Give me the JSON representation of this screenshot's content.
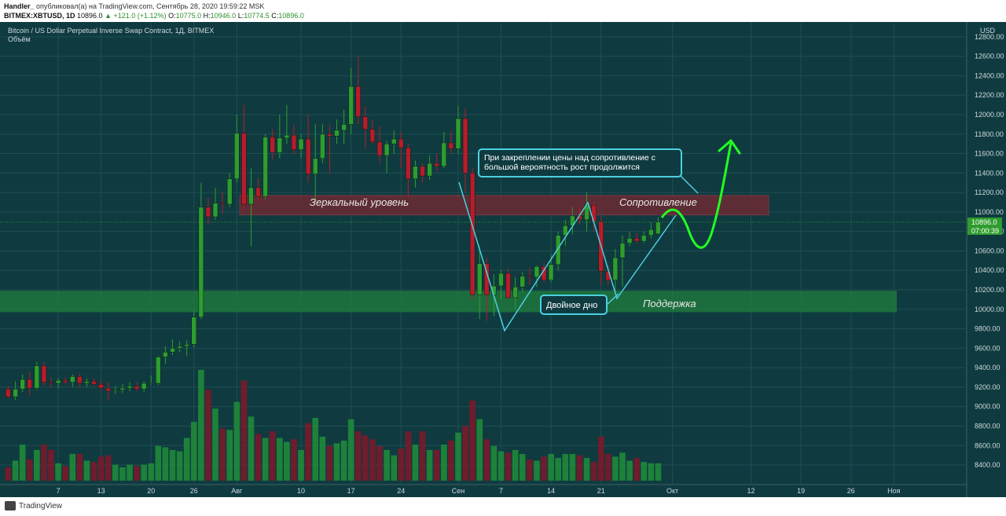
{
  "header": {
    "author": "Handler_",
    "published": "опубликовал(а) на TradingView.com, Сентябрь 28, 2020 19:59:22 MSK",
    "symbol": "BITMEX:XBTUSD, 1D",
    "price": "10896.0",
    "change": "▲ +121.0 (+1.12%)",
    "ohlc_labels": [
      "O:",
      "H:",
      "L:",
      "C:"
    ],
    "ohlc_values": [
      "10775.0",
      "10946.0",
      "10774.5",
      "10896.0"
    ]
  },
  "chart_title": "Bitcoin / US Dollar Perpetual Inverse Swap Contract, 1Д, BITMEX",
  "volume_label": "Объём",
  "annotations": {
    "mirror_level": "Зеркальный уровень",
    "resistance": "Сопротивление",
    "support": "Поддержка",
    "double_bottom": "Двойное дно",
    "callout_line1": "При закреплении цены над сопротивление с",
    "callout_line2": "большой вероятность рост продолжится"
  },
  "price_tag": "10896.0",
  "time_tag": "07:00:39",
  "footer_brand": "TradingView",
  "colors": {
    "background": "#0f3b40",
    "up": "#2e9d2e",
    "down": "#b71c2a",
    "resistance_zone": "#6b2a33",
    "support_zone": "#1f7a3c",
    "pattern_line": "#4dd0e1",
    "projection": "#22ff22"
  },
  "chart_data": {
    "type": "candlestick",
    "currency": "USD",
    "y_ticks": [
      8400,
      8600,
      8800,
      9000,
      9200,
      9400,
      9600,
      9800,
      10000,
      10200,
      10400,
      10600,
      10800,
      11000,
      11200,
      11400,
      11600,
      11800,
      12000,
      12200,
      12400,
      12600,
      12800
    ],
    "x_ticks": [
      {
        "label": "7",
        "day": 7
      },
      {
        "label": "13",
        "day": 13
      },
      {
        "label": "20",
        "day": 20
      },
      {
        "label": "26",
        "day": 26
      },
      {
        "label": "Авг",
        "day": 32
      },
      {
        "label": "10",
        "day": 41
      },
      {
        "label": "17",
        "day": 48
      },
      {
        "label": "24",
        "day": 55
      },
      {
        "label": "Сен",
        "day": 63
      },
      {
        "label": "7",
        "day": 69
      },
      {
        "label": "14",
        "day": 76
      },
      {
        "label": "21",
        "day": 83
      },
      {
        "label": "Окт",
        "day": 93
      },
      {
        "label": "12",
        "day": 104
      },
      {
        "label": "19",
        "day": 111
      },
      {
        "label": "26",
        "day": 118
      },
      {
        "label": "Ноя",
        "day": 124
      }
    ],
    "candles": [
      {
        "d": 0,
        "o": 9180,
        "h": 9210,
        "l": 9090,
        "c": 9100,
        "v": 1.0
      },
      {
        "d": 1,
        "o": 9100,
        "h": 9260,
        "l": 9070,
        "c": 9180,
        "v": 1.5
      },
      {
        "d": 2,
        "o": 9180,
        "h": 9330,
        "l": 9150,
        "c": 9280,
        "v": 2.7
      },
      {
        "d": 3,
        "o": 9280,
        "h": 9360,
        "l": 9110,
        "c": 9190,
        "v": 1.6
      },
      {
        "d": 4,
        "o": 9190,
        "h": 9460,
        "l": 9170,
        "c": 9420,
        "v": 2.3
      },
      {
        "d": 5,
        "o": 9420,
        "h": 9460,
        "l": 9220,
        "c": 9250,
        "v": 2.7
      },
      {
        "d": 6,
        "o": 9250,
        "h": 9300,
        "l": 9200,
        "c": 9240,
        "v": 2.3
      },
      {
        "d": 7,
        "o": 9240,
        "h": 9290,
        "l": 9190,
        "c": 9270,
        "v": 1.3
      },
      {
        "d": 8,
        "o": 9270,
        "h": 9300,
        "l": 9230,
        "c": 9250,
        "v": 1.1
      },
      {
        "d": 9,
        "o": 9250,
        "h": 9330,
        "l": 9200,
        "c": 9310,
        "v": 2.0
      },
      {
        "d": 10,
        "o": 9310,
        "h": 9340,
        "l": 9200,
        "c": 9240,
        "v": 2.0
      },
      {
        "d": 11,
        "o": 9240,
        "h": 9290,
        "l": 9200,
        "c": 9260,
        "v": 1.5
      },
      {
        "d": 12,
        "o": 9260,
        "h": 9290,
        "l": 9210,
        "c": 9230,
        "v": 1.4
      },
      {
        "d": 13,
        "o": 9230,
        "h": 9270,
        "l": 9170,
        "c": 9190,
        "v": 1.8
      },
      {
        "d": 14,
        "o": 9190,
        "h": 9250,
        "l": 9060,
        "c": 9160,
        "v": 1.9
      },
      {
        "d": 15,
        "o": 9160,
        "h": 9210,
        "l": 9130,
        "c": 9170,
        "v": 1.2
      },
      {
        "d": 16,
        "o": 9170,
        "h": 9230,
        "l": 9140,
        "c": 9190,
        "v": 1.0
      },
      {
        "d": 17,
        "o": 9190,
        "h": 9250,
        "l": 9160,
        "c": 9210,
        "v": 1.2
      },
      {
        "d": 18,
        "o": 9210,
        "h": 9250,
        "l": 9160,
        "c": 9180,
        "v": 1.1
      },
      {
        "d": 19,
        "o": 9180,
        "h": 9260,
        "l": 9150,
        "c": 9240,
        "v": 1.2
      },
      {
        "d": 20,
        "o": 9240,
        "h": 9320,
        "l": 9220,
        "c": 9240,
        "v": 1.3
      },
      {
        "d": 21,
        "o": 9240,
        "h": 9520,
        "l": 9220,
        "c": 9510,
        "v": 2.6
      },
      {
        "d": 22,
        "o": 9510,
        "h": 9620,
        "l": 9440,
        "c": 9560,
        "v": 2.5
      },
      {
        "d": 23,
        "o": 9560,
        "h": 9690,
        "l": 9530,
        "c": 9600,
        "v": 2.3
      },
      {
        "d": 24,
        "o": 9600,
        "h": 9670,
        "l": 9560,
        "c": 9620,
        "v": 2.2
      },
      {
        "d": 25,
        "o": 9620,
        "h": 9680,
        "l": 9520,
        "c": 9640,
        "v": 3.2
      },
      {
        "d": 26,
        "o": 9640,
        "h": 9990,
        "l": 9610,
        "c": 9920,
        "v": 4.4
      },
      {
        "d": 27,
        "o": 9920,
        "h": 11300,
        "l": 9900,
        "c": 11050,
        "v": 8.3
      },
      {
        "d": 28,
        "o": 11050,
        "h": 11150,
        "l": 10870,
        "c": 10950,
        "v": 6.8
      },
      {
        "d": 29,
        "o": 10950,
        "h": 11250,
        "l": 10920,
        "c": 11090,
        "v": 5.4
      },
      {
        "d": 30,
        "o": 11090,
        "h": 11200,
        "l": 10980,
        "c": 11080,
        "v": 3.9
      },
      {
        "d": 31,
        "o": 11080,
        "h": 11400,
        "l": 11050,
        "c": 11340,
        "v": 3.8
      },
      {
        "d": 32,
        "o": 11340,
        "h": 12000,
        "l": 11300,
        "c": 11810,
        "v": 5.9
      },
      {
        "d": 33,
        "o": 11810,
        "h": 12100,
        "l": 11020,
        "c": 11080,
        "v": 7.5
      },
      {
        "d": 34,
        "o": 11080,
        "h": 11450,
        "l": 10650,
        "c": 11250,
        "v": 4.8
      },
      {
        "d": 35,
        "o": 11250,
        "h": 11350,
        "l": 11100,
        "c": 11160,
        "v": 3.5
      },
      {
        "d": 36,
        "o": 11160,
        "h": 11800,
        "l": 11130,
        "c": 11770,
        "v": 3.2
      },
      {
        "d": 37,
        "o": 11770,
        "h": 11850,
        "l": 11540,
        "c": 11610,
        "v": 3.7
      },
      {
        "d": 38,
        "o": 11610,
        "h": 12000,
        "l": 11550,
        "c": 11760,
        "v": 3.2
      },
      {
        "d": 39,
        "o": 11760,
        "h": 12100,
        "l": 11700,
        "c": 11790,
        "v": 2.9
      },
      {
        "d": 40,
        "o": 11790,
        "h": 11890,
        "l": 11600,
        "c": 11640,
        "v": 3.1
      },
      {
        "d": 41,
        "o": 11640,
        "h": 11800,
        "l": 11550,
        "c": 11750,
        "v": 2.3
      },
      {
        "d": 42,
        "o": 11750,
        "h": 12000,
        "l": 11300,
        "c": 11390,
        "v": 4.3
      },
      {
        "d": 43,
        "o": 11390,
        "h": 11900,
        "l": 11100,
        "c": 11550,
        "v": 4.7
      },
      {
        "d": 44,
        "o": 11550,
        "h": 11900,
        "l": 11500,
        "c": 11800,
        "v": 3.3
      },
      {
        "d": 45,
        "o": 11800,
        "h": 11900,
        "l": 11400,
        "c": 11780,
        "v": 2.6
      },
      {
        "d": 46,
        "o": 11780,
        "h": 11950,
        "l": 11700,
        "c": 11840,
        "v": 2.8
      },
      {
        "d": 47,
        "o": 11840,
        "h": 12050,
        "l": 11700,
        "c": 11900,
        "v": 3.0
      },
      {
        "d": 48,
        "o": 11900,
        "h": 12480,
        "l": 11800,
        "c": 12290,
        "v": 4.6
      },
      {
        "d": 49,
        "o": 12290,
        "h": 12600,
        "l": 11900,
        "c": 11980,
        "v": 3.7
      },
      {
        "d": 50,
        "o": 11980,
        "h": 12090,
        "l": 11650,
        "c": 11850,
        "v": 3.4
      },
      {
        "d": 51,
        "o": 11850,
        "h": 11950,
        "l": 11700,
        "c": 11720,
        "v": 3.1
      },
      {
        "d": 52,
        "o": 11720,
        "h": 11880,
        "l": 11500,
        "c": 11580,
        "v": 2.6
      },
      {
        "d": 53,
        "o": 11580,
        "h": 11730,
        "l": 11400,
        "c": 11700,
        "v": 2.3
      },
      {
        "d": 54,
        "o": 11700,
        "h": 11840,
        "l": 11600,
        "c": 11750,
        "v": 1.9
      },
      {
        "d": 55,
        "o": 11750,
        "h": 11820,
        "l": 11450,
        "c": 11660,
        "v": 2.4
      },
      {
        "d": 56,
        "o": 11660,
        "h": 11700,
        "l": 11150,
        "c": 11340,
        "v": 3.7
      },
      {
        "d": 57,
        "o": 11340,
        "h": 11530,
        "l": 11250,
        "c": 11470,
        "v": 2.7
      },
      {
        "d": 58,
        "o": 11470,
        "h": 11500,
        "l": 11300,
        "c": 11370,
        "v": 3.7
      },
      {
        "d": 59,
        "o": 11370,
        "h": 11580,
        "l": 11330,
        "c": 11500,
        "v": 2.3
      },
      {
        "d": 60,
        "o": 11500,
        "h": 11600,
        "l": 11420,
        "c": 11470,
        "v": 2.3
      },
      {
        "d": 61,
        "o": 11470,
        "h": 11820,
        "l": 11450,
        "c": 11710,
        "v": 2.7
      },
      {
        "d": 62,
        "o": 11710,
        "h": 11830,
        "l": 11600,
        "c": 11650,
        "v": 3.0
      },
      {
        "d": 63,
        "o": 11650,
        "h": 12090,
        "l": 11600,
        "c": 11960,
        "v": 3.6
      },
      {
        "d": 64,
        "o": 11960,
        "h": 12060,
        "l": 11200,
        "c": 11400,
        "v": 4.1
      },
      {
        "d": 65,
        "o": 11400,
        "h": 11460,
        "l": 10100,
        "c": 10150,
        "v": 6.0
      },
      {
        "d": 66,
        "o": 10150,
        "h": 10650,
        "l": 9900,
        "c": 10470,
        "v": 4.6
      },
      {
        "d": 67,
        "o": 10470,
        "h": 10530,
        "l": 9880,
        "c": 10150,
        "v": 3.1
      },
      {
        "d": 68,
        "o": 10150,
        "h": 10360,
        "l": 9930,
        "c": 10240,
        "v": 2.6
      },
      {
        "d": 69,
        "o": 10240,
        "h": 10400,
        "l": 10100,
        "c": 10370,
        "v": 2.2
      },
      {
        "d": 70,
        "o": 10370,
        "h": 10420,
        "l": 10100,
        "c": 10120,
        "v": 2.1
      },
      {
        "d": 71,
        "o": 10120,
        "h": 10330,
        "l": 10000,
        "c": 10230,
        "v": 2.3
      },
      {
        "d": 72,
        "o": 10230,
        "h": 10380,
        "l": 10170,
        "c": 10340,
        "v": 2.0
      },
      {
        "d": 73,
        "o": 10340,
        "h": 10430,
        "l": 10250,
        "c": 10330,
        "v": 1.6
      },
      {
        "d": 74,
        "o": 10330,
        "h": 10450,
        "l": 10230,
        "c": 10440,
        "v": 1.5
      },
      {
        "d": 75,
        "o": 10440,
        "h": 10480,
        "l": 10280,
        "c": 10300,
        "v": 1.8
      },
      {
        "d": 76,
        "o": 10300,
        "h": 10560,
        "l": 10280,
        "c": 10460,
        "v": 2.0
      },
      {
        "d": 77,
        "o": 10460,
        "h": 10800,
        "l": 10400,
        "c": 10760,
        "v": 1.7
      },
      {
        "d": 78,
        "o": 10760,
        "h": 10920,
        "l": 10650,
        "c": 10860,
        "v": 2.0
      },
      {
        "d": 79,
        "o": 10860,
        "h": 11050,
        "l": 10770,
        "c": 10960,
        "v": 2.0
      },
      {
        "d": 80,
        "o": 10960,
        "h": 11050,
        "l": 10870,
        "c": 10920,
        "v": 1.9
      },
      {
        "d": 81,
        "o": 10920,
        "h": 11200,
        "l": 10800,
        "c": 11070,
        "v": 1.7
      },
      {
        "d": 82,
        "o": 11070,
        "h": 11100,
        "l": 10800,
        "c": 10900,
        "v": 1.4
      },
      {
        "d": 83,
        "o": 10900,
        "h": 10960,
        "l": 10250,
        "c": 10390,
        "v": 3.3
      },
      {
        "d": 84,
        "o": 10390,
        "h": 10450,
        "l": 10250,
        "c": 10300,
        "v": 2.0
      },
      {
        "d": 85,
        "o": 10300,
        "h": 10620,
        "l": 10150,
        "c": 10530,
        "v": 1.8
      },
      {
        "d": 86,
        "o": 10530,
        "h": 10760,
        "l": 10230,
        "c": 10680,
        "v": 2.1
      },
      {
        "d": 87,
        "o": 10680,
        "h": 10800,
        "l": 10650,
        "c": 10730,
        "v": 1.5
      },
      {
        "d": 88,
        "o": 10730,
        "h": 10780,
        "l": 10680,
        "c": 10700,
        "v": 1.7
      },
      {
        "d": 89,
        "o": 10700,
        "h": 10800,
        "l": 10680,
        "c": 10760,
        "v": 1.4
      },
      {
        "d": 90,
        "o": 10760,
        "h": 10900,
        "l": 10730,
        "c": 10820,
        "v": 1.3
      },
      {
        "d": 91,
        "o": 10775,
        "h": 10946,
        "l": 10774.5,
        "c": 10896,
        "v": 1.3
      }
    ],
    "zones": {
      "resistance": [
        10970,
        11170
      ],
      "support": [
        9970,
        10190
      ]
    }
  }
}
